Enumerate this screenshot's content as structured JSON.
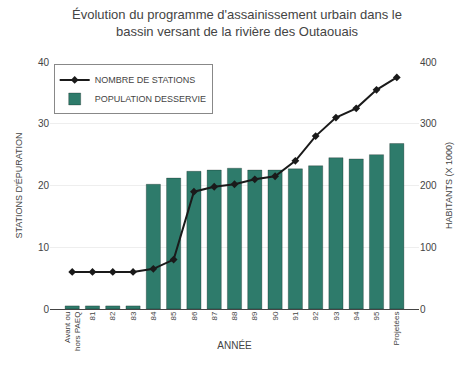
{
  "chart_data": {
    "type": "bar",
    "title": "Évolution du programme d'assainissement urbain dans le\nbassin versant de la rivière des Outaouais",
    "xlabel": "ANNÉE",
    "ylabel": "STATIONS D'ÉPURATION",
    "y2label": "HABITANTS (X 1000)",
    "categories": [
      "Avant ou\nhors PAEQ",
      "81",
      "82",
      "83",
      "84",
      "85",
      "86",
      "87",
      "88",
      "89",
      "90",
      "91",
      "92",
      "93",
      "94",
      "95",
      "Projetées"
    ],
    "series": [
      {
        "name": "NOMBRE DE STATIONS",
        "type": "line",
        "color": "#1a1a1a",
        "marker": "diamond",
        "values": [
          6.0,
          6.0,
          6.0,
          6.0,
          6.5,
          8.0,
          19.0,
          19.8,
          20.2,
          21.0,
          21.5,
          24.0,
          28.0,
          31.0,
          32.5,
          35.5,
          37.5
        ]
      },
      {
        "name": "POPULATION DESSERVIE",
        "type": "bar",
        "color": "#2e7b6b",
        "values": [
          0.5,
          0.5,
          0.5,
          0.5,
          20.2,
          21.2,
          22.3,
          22.5,
          22.8,
          22.5,
          22.5,
          22.7,
          23.2,
          24.5,
          24.3,
          25.0,
          26.8
        ]
      }
    ],
    "ylim": [
      0,
      40
    ],
    "yticks": [
      0,
      10,
      20,
      30,
      40
    ],
    "y2lim": [
      0,
      400
    ],
    "y2ticks": [
      0,
      100,
      200,
      300,
      400
    ],
    "grid": true,
    "legend": "upper left"
  }
}
